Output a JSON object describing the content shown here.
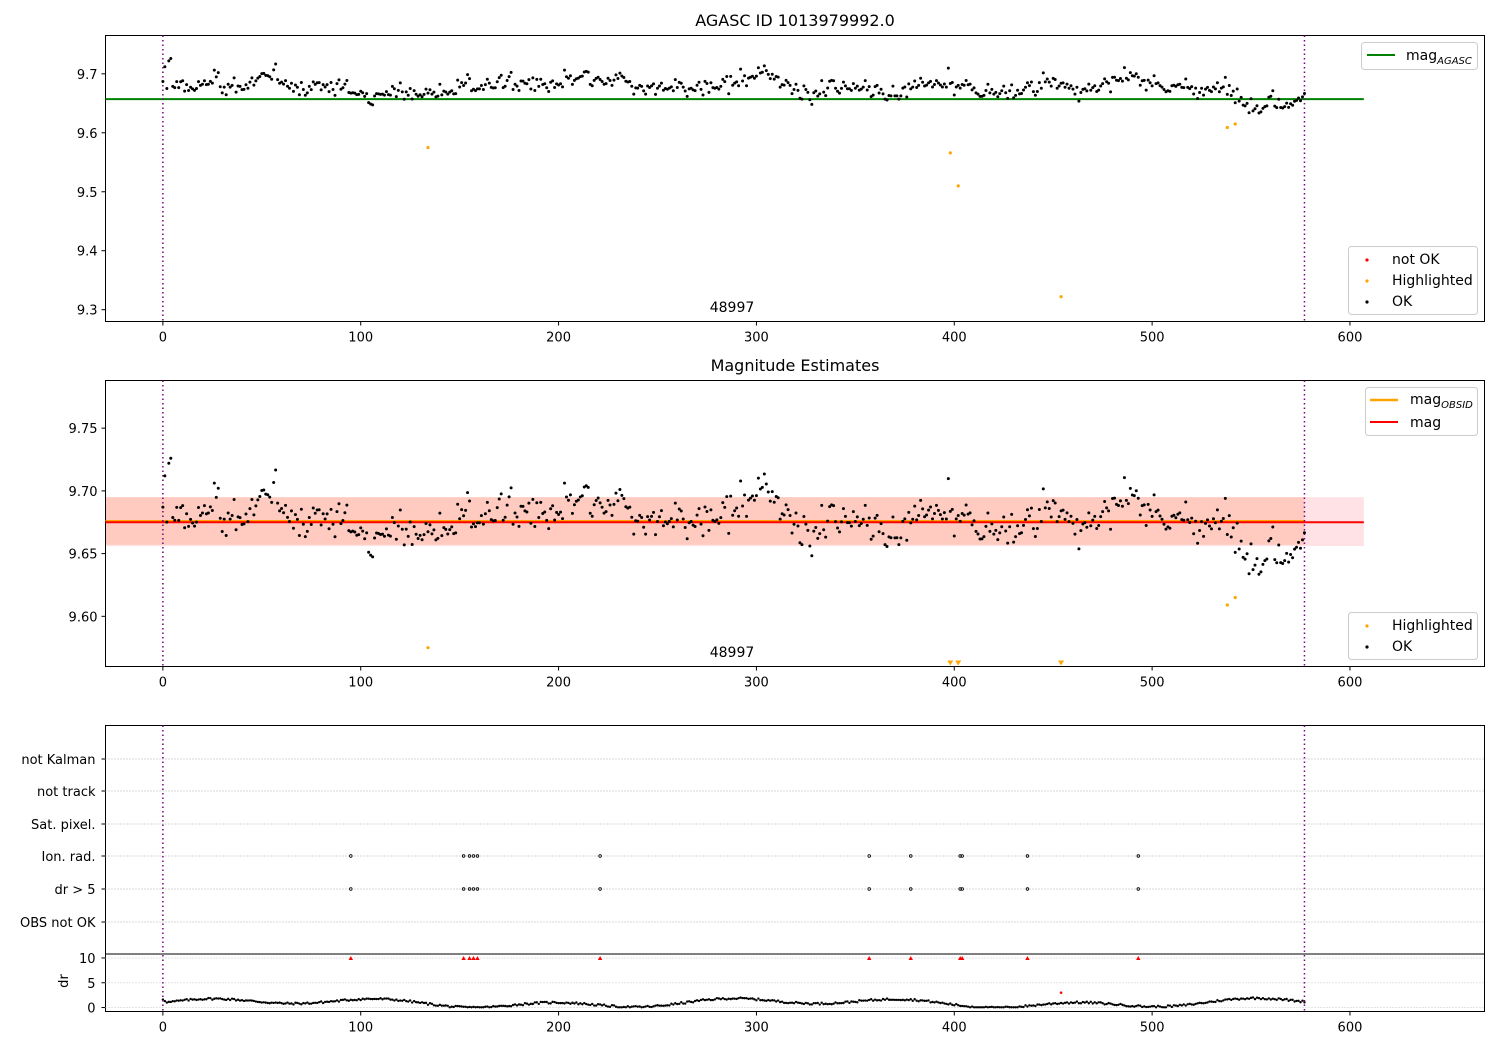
{
  "chart_data": [
    {
      "type": "scatter",
      "title": "AGASC ID 1013979992.0",
      "xlim": [
        -29,
        668
      ],
      "ylim": [
        9.28,
        9.765
      ],
      "xticks": [
        "0",
        "100",
        "200",
        "300",
        "400",
        "500",
        "600"
      ],
      "yticks": [
        "9.3",
        "9.4",
        "9.5",
        "9.6",
        "9.7"
      ],
      "lines": [
        {
          "name": "mag_AGASC",
          "label_main": "mag",
          "label_sub": "AGASC",
          "y": 9.657,
          "x_range": [
            -29,
            607
          ],
          "color": "#008000"
        }
      ],
      "vlines": [
        0,
        577
      ],
      "annotation": {
        "text": "48997",
        "x": 288,
        "y": 9.295
      },
      "series": [
        {
          "name": "not OK",
          "color": "#ff0000",
          "points": []
        },
        {
          "name": "Highlighted",
          "color": "#ffa500",
          "points": [
            [
              134,
              9.575
            ],
            [
              398,
              9.566
            ],
            [
              402,
              9.51
            ],
            [
              454,
              9.322
            ],
            [
              538,
              9.609
            ],
            [
              542,
              9.615
            ]
          ]
        },
        {
          "name": "OK",
          "color": "#000000",
          "generated": {
            "n": 578,
            "mean": 9.676,
            "spread": 0.017
          }
        }
      ],
      "legend_lines": "top-right",
      "legend_points": "bottom-right"
    },
    {
      "type": "scatter",
      "title": "Magnitude Estimates",
      "xlim": [
        -29,
        668
      ],
      "ylim": [
        9.56,
        9.788
      ],
      "xticks": [
        "0",
        "100",
        "200",
        "300",
        "400",
        "500",
        "600"
      ],
      "yticks": [
        "9.60",
        "9.65",
        "9.70",
        "9.75"
      ],
      "lines": [
        {
          "name": "mag_OBSID",
          "label_main": "mag",
          "label_sub": "OBSID",
          "y": 9.676,
          "x_range": [
            -29,
            577
          ],
          "color": "#ffa500"
        },
        {
          "name": "mag",
          "label_main": "mag",
          "label_sub": "",
          "y": 9.675,
          "x_range": [
            -29,
            607
          ],
          "color": "#ff0000"
        }
      ],
      "bands": [
        {
          "y": [
            9.656,
            9.695
          ],
          "x_range": [
            -29,
            607
          ],
          "color": "#ffb6c1",
          "opacity": 0.4
        },
        {
          "y": [
            9.657,
            9.695
          ],
          "x_range": [
            -29,
            577
          ],
          "color": "#ffa07a",
          "opacity": 0.35
        }
      ],
      "vlines": [
        0,
        577
      ],
      "annotation": {
        "text": "48997",
        "x": 288,
        "y": 9.57
      },
      "series": [
        {
          "name": "Highlighted",
          "color": "#ffa500",
          "points": [
            [
              134,
              9.575
            ],
            [
              538,
              9.609
            ],
            [
              542,
              9.615
            ]
          ],
          "offscale_x": [
            398,
            402,
            454
          ]
        },
        {
          "name": "OK",
          "color": "#000000",
          "generated": {
            "n": 578,
            "mean": 9.676,
            "spread": 0.017
          }
        }
      ],
      "legend_lines": "top-right",
      "legend_points": "bottom-right"
    },
    {
      "type": "scatter",
      "title": "",
      "xlim": [
        -29,
        668
      ],
      "xticks": [
        "0",
        "100",
        "200",
        "300",
        "400",
        "500",
        "600"
      ],
      "flag_rows": [
        "not Kalman",
        "not track",
        "Sat. pixel.",
        "Ion. rad.",
        "dr > 5",
        "OBS not OK"
      ],
      "flagged_x": [
        95,
        152,
        155,
        157,
        159,
        221,
        357,
        378,
        403,
        404,
        437,
        493
      ],
      "flag_row_hits": {
        "Ion. rad.": "flagged_x",
        "dr > 5": "flagged_x"
      },
      "dr_axis": {
        "ylabel": "dr",
        "yticks": [
          "0",
          "5",
          "10"
        ],
        "ylim": [
          -0.8,
          10.8
        ],
        "clip_value": 10
      },
      "dr_highlight": [
        454,
        3.0
      ],
      "vlines": [
        0,
        577
      ]
    }
  ]
}
